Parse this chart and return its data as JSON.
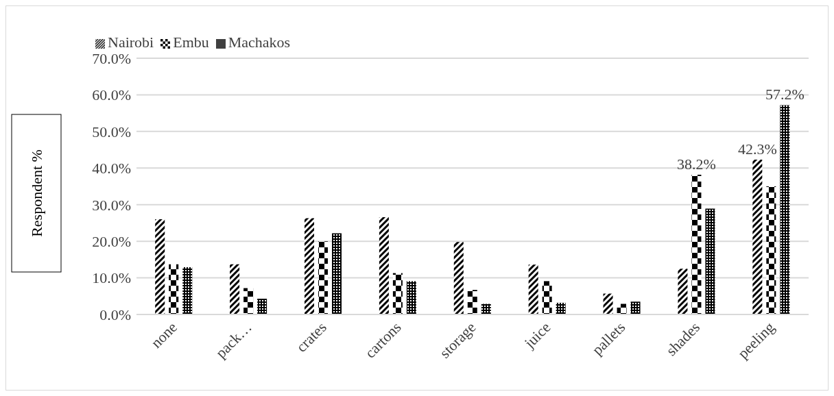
{
  "chart_data": {
    "type": "bar",
    "ylabel": "Respondent %",
    "categories": [
      "none",
      "pack…",
      "crates",
      "cartons",
      "storage",
      "juice",
      "pallets",
      "shades",
      "peeling"
    ],
    "series": [
      {
        "name": "Nairobi",
        "color": "#000000",
        "values": [
          26.0,
          13.7,
          26.3,
          26.6,
          19.8,
          13.6,
          5.7,
          12.5,
          42.3
        ],
        "value_labels": [
          null,
          null,
          null,
          null,
          null,
          null,
          null,
          null,
          "42.3%"
        ]
      },
      {
        "name": "Embu",
        "color": "#000000",
        "values": [
          13.7,
          7.2,
          20.0,
          11.3,
          6.7,
          9.1,
          2.9,
          38.2,
          35.0
        ],
        "value_labels": [
          null,
          null,
          null,
          null,
          null,
          null,
          null,
          "38.2%",
          null
        ]
      },
      {
        "name": "Machakos",
        "color": "#000000",
        "values": [
          12.9,
          4.3,
          22.2,
          9.1,
          2.9,
          3.2,
          3.5,
          28.9,
          57.2
        ],
        "value_labels": [
          null,
          null,
          null,
          null,
          null,
          null,
          null,
          null,
          "57.2%"
        ]
      }
    ],
    "ylim": [
      0,
      70
    ],
    "yticks": [
      {
        "value": 0,
        "label": "0.0%"
      },
      {
        "value": 10,
        "label": "10.0%"
      },
      {
        "value": 20,
        "label": "20.0%"
      },
      {
        "value": 30,
        "label": "30.0%"
      },
      {
        "value": 40,
        "label": "40.0%"
      },
      {
        "value": 50,
        "label": "50.0%"
      },
      {
        "value": 60,
        "label": "60.0%"
      },
      {
        "value": 70,
        "label": "70.0%"
      }
    ],
    "grid": "y",
    "legend": "top left"
  }
}
